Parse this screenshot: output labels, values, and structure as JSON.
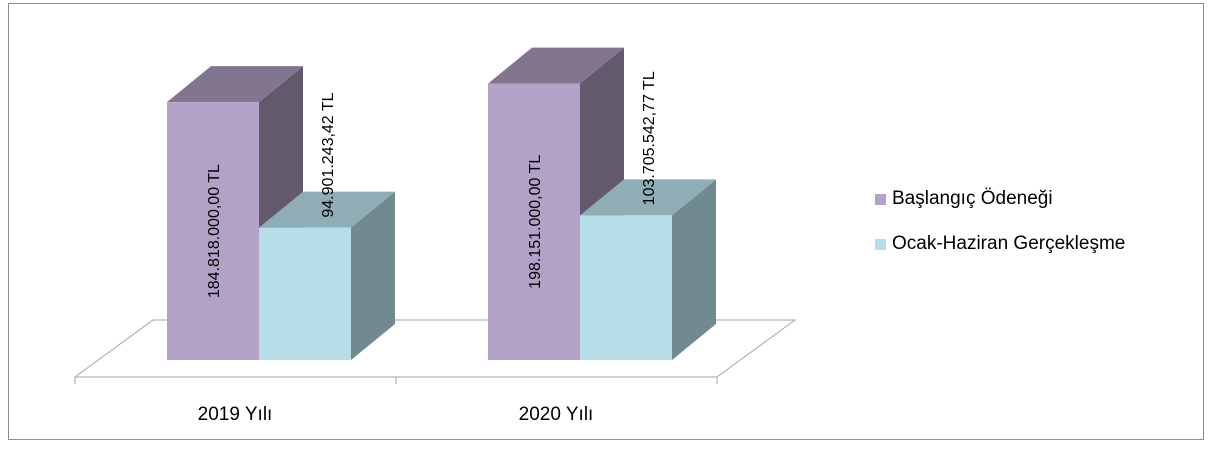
{
  "chart_data": {
    "type": "bar",
    "title": "",
    "xlabel": "",
    "ylabel": "",
    "categories": [
      "2019 Yılı",
      "2020 Yılı"
    ],
    "series": [
      {
        "name": "Başlangıç Ödeneği",
        "values": [
          184818000.0,
          198151000.0
        ],
        "labels": [
          "184.818.000,00 TL",
          "198.151.000,00 TL"
        ],
        "color": "#b3a2c7"
      },
      {
        "name": "Ocak-Haziran Gerçekleşme",
        "values": [
          94901243.42,
          103705542.77
        ],
        "labels": [
          "94.901.243,42 TL",
          "103.705.542,77 TL"
        ],
        "color": "#b7dee8"
      }
    ],
    "ylim": [
      0,
      200000000
    ],
    "grid": false,
    "style": "3d-clustered-column",
    "legend_position": "right"
  }
}
